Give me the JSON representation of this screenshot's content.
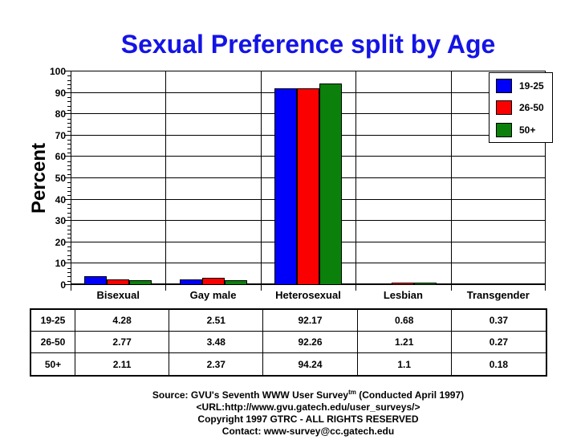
{
  "chart_data": {
    "type": "bar",
    "title": "Sexual Preference split by Age",
    "ylabel": "Percent",
    "xlabel": "",
    "ylim": [
      0,
      100
    ],
    "y_ticks": [
      0,
      10,
      20,
      30,
      40,
      50,
      60,
      70,
      80,
      90,
      100
    ],
    "y_minor_tick_step": 2,
    "grid": true,
    "legend_position": "top-right",
    "categories": [
      "Bisexual",
      "Gay male",
      "Heterosexual",
      "Lesbian",
      "Transgender"
    ],
    "series": [
      {
        "name": "19-25",
        "color": "#0000fa",
        "values": [
          4.28,
          2.51,
          92.17,
          0.68,
          0.37
        ]
      },
      {
        "name": "26-50",
        "color": "#fa0000",
        "values": [
          2.77,
          3.48,
          92.26,
          1.21,
          0.27
        ]
      },
      {
        "name": "50+",
        "color": "#0b800b",
        "values": [
          2.11,
          2.37,
          94.24,
          1.1,
          0.18
        ]
      }
    ]
  },
  "colors": {
    "title": "#1414e6",
    "axis": "#000000",
    "background": "#ffffff"
  },
  "footer": {
    "source_prefix": "Source: GVU's Seventh WWW User Survey",
    "source_sup": "tm",
    "source_suffix": " (Conducted April 1997)",
    "url_line": "<URL:http://www.gvu.gatech.edu/user_surveys/>",
    "copyright_line": "Copyright 1997 GTRC - ALL RIGHTS RESERVED",
    "contact_line": "Contact: www-survey@cc.gatech.edu"
  }
}
